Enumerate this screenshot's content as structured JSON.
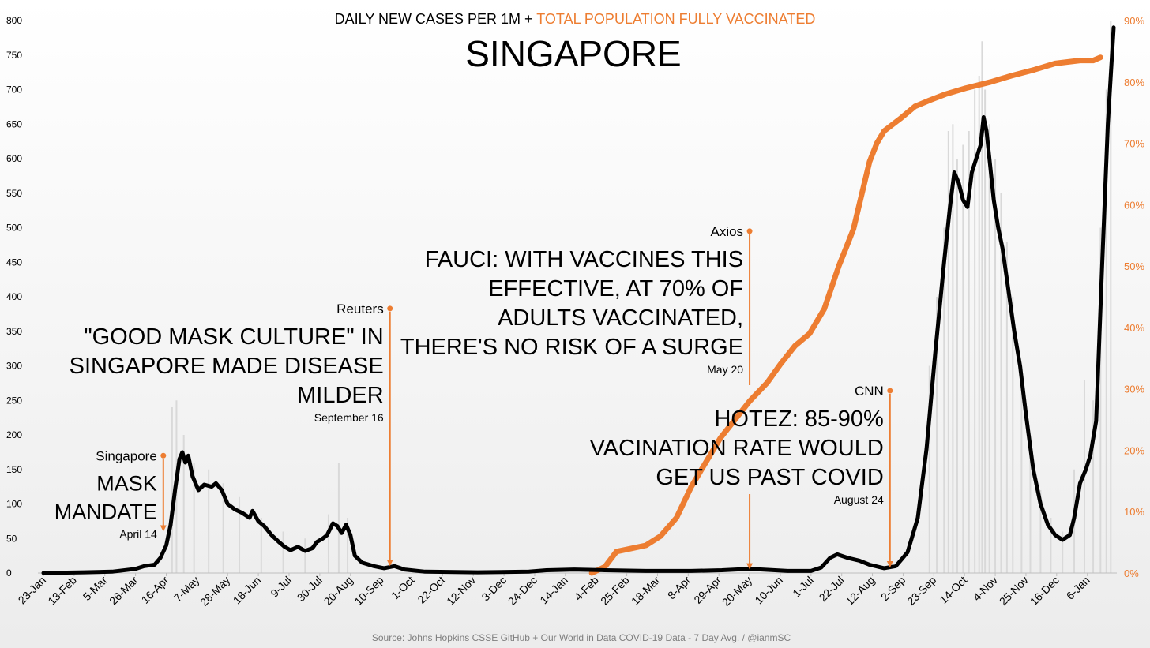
{
  "header": {
    "title_black": "DAILY NEW CASES PER 1M + ",
    "title_orange": "TOTAL POPULATION FULLY VACCINATED",
    "subtitle": "SINGAPORE"
  },
  "source": "Source: Johns Hopkins CSSE GitHub  + Our World in Data COVID-19 Data - 7 Day Avg. / @ianmSC",
  "colors": {
    "cases": "#000000",
    "vaccinated": "#ED7D31",
    "daily_bars": "#D9D9D9"
  },
  "annotations": [
    {
      "source": "Singapore",
      "lines": [
        "MASK",
        "MANDATE"
      ],
      "date": "April 14",
      "x_date": "2020-04-14",
      "line_top_y": 170,
      "arrow_y": 60,
      "text_top_y": 170,
      "date_below": true
    },
    {
      "source": "Reuters",
      "lines": [
        "\"GOOD MASK CULTURE\" IN",
        "SINGAPORE MADE DISEASE",
        "MILDER"
      ],
      "date": "September 16",
      "x_date": "2020-09-16",
      "line_top_y": 383,
      "arrow_y": 10,
      "text_top_y": 383,
      "date_below": true
    },
    {
      "source": "Axios",
      "lines": [
        "FAUCI: WITH VACCINES THIS",
        "EFFECTIVE, AT 70% OF",
        "ADULTS VACCINATED,",
        "THERE'S NO RISK OF A SURGE"
      ],
      "date": "May 20",
      "x_date": "2021-05-20",
      "line_top_y": 495,
      "arrow_y": 5,
      "text_top_y": 480,
      "date_below": true
    },
    {
      "source": "CNN",
      "lines": [
        "HOTEZ: 85-90%",
        "VACINATION RATE WOULD",
        "GET US PAST COVID"
      ],
      "date": "August 24",
      "x_date": "2021-08-24",
      "line_top_y": 264,
      "arrow_y": 8,
      "text_top_y": 264,
      "date_below": true
    }
  ],
  "chart_data": {
    "type": "line",
    "x_axis": {
      "type": "date",
      "range": [
        "2020-01-23",
        "2022-01-24"
      ],
      "tick_labels": [
        "23-Jan",
        "13-Feb",
        "5-Mar",
        "26-Mar",
        "16-Apr",
        "7-May",
        "28-May",
        "18-Jun",
        "9-Jul",
        "30-Jul",
        "20-Aug",
        "10-Sep",
        "1-Oct",
        "22-Oct",
        "12-Nov",
        "3-Dec",
        "24-Dec",
        "14-Jan",
        "4-Feb",
        "25-Feb",
        "18-Mar",
        "8-Apr",
        "29-Apr",
        "20-May",
        "10-Jun",
        "1-Jul",
        "22-Jul",
        "12-Aug",
        "2-Sep",
        "23-Sep",
        "14-Oct",
        "4-Nov",
        "25-Nov",
        "16-Dec",
        "6-Jan"
      ],
      "tick_start": "2020-01-23",
      "tick_interval_days": 21
    },
    "y_left": {
      "range": [
        0,
        800
      ],
      "ticks": [
        0,
        50,
        100,
        150,
        200,
        250,
        300,
        350,
        400,
        450,
        500,
        550,
        600,
        650,
        700,
        750,
        800
      ]
    },
    "y_right": {
      "range": [
        0,
        90
      ],
      "ticks": [
        "0%",
        "10%",
        "20%",
        "30%",
        "40%",
        "50%",
        "60%",
        "70%",
        "80%",
        "90%"
      ],
      "unit": "%"
    },
    "grid": false,
    "series": [
      {
        "axis": "left",
        "style": "line",
        "points": [
          [
            "2020-01-23",
            0
          ],
          [
            "2020-02-20",
            1
          ],
          [
            "2020-03-10",
            2
          ],
          [
            "2020-03-26",
            6
          ],
          [
            "2020-04-01",
            10
          ],
          [
            "2020-04-08",
            12
          ],
          [
            "2020-04-12",
            22
          ],
          [
            "2020-04-16",
            40
          ],
          [
            "2020-04-19",
            70
          ],
          [
            "2020-04-22",
            120
          ],
          [
            "2020-04-25",
            165
          ],
          [
            "2020-04-27",
            175
          ],
          [
            "2020-04-29",
            160
          ],
          [
            "2020-05-01",
            170
          ],
          [
            "2020-05-04",
            140
          ],
          [
            "2020-05-08",
            120
          ],
          [
            "2020-05-12",
            128
          ],
          [
            "2020-05-17",
            125
          ],
          [
            "2020-05-20",
            130
          ],
          [
            "2020-05-24",
            120
          ],
          [
            "2020-05-28",
            100
          ],
          [
            "2020-06-02",
            92
          ],
          [
            "2020-06-07",
            87
          ],
          [
            "2020-06-12",
            80
          ],
          [
            "2020-06-14",
            90
          ],
          [
            "2020-06-18",
            75
          ],
          [
            "2020-06-22",
            68
          ],
          [
            "2020-06-27",
            55
          ],
          [
            "2020-07-02",
            45
          ],
          [
            "2020-07-06",
            38
          ],
          [
            "2020-07-10",
            33
          ],
          [
            "2020-07-15",
            38
          ],
          [
            "2020-07-20",
            32
          ],
          [
            "2020-07-25",
            36
          ],
          [
            "2020-07-28",
            45
          ],
          [
            "2020-08-01",
            50
          ],
          [
            "2020-08-04",
            55
          ],
          [
            "2020-08-08",
            72
          ],
          [
            "2020-08-11",
            68
          ],
          [
            "2020-08-14",
            58
          ],
          [
            "2020-08-17",
            70
          ],
          [
            "2020-08-20",
            55
          ],
          [
            "2020-08-23",
            25
          ],
          [
            "2020-08-28",
            15
          ],
          [
            "2020-09-05",
            10
          ],
          [
            "2020-09-12",
            7
          ],
          [
            "2020-09-19",
            10
          ],
          [
            "2020-09-26",
            5
          ],
          [
            "2020-10-10",
            2
          ],
          [
            "2020-11-15",
            1
          ],
          [
            "2020-12-20",
            2
          ],
          [
            "2021-01-01",
            4
          ],
          [
            "2021-01-20",
            5
          ],
          [
            "2021-02-10",
            4
          ],
          [
            "2021-03-10",
            3
          ],
          [
            "2021-04-10",
            3
          ],
          [
            "2021-05-01",
            4
          ],
          [
            "2021-05-20",
            6
          ],
          [
            "2021-06-15",
            3
          ],
          [
            "2021-07-01",
            3
          ],
          [
            "2021-07-08",
            8
          ],
          [
            "2021-07-14",
            22
          ],
          [
            "2021-07-19",
            27
          ],
          [
            "2021-07-26",
            22
          ],
          [
            "2021-08-03",
            18
          ],
          [
            "2021-08-10",
            12
          ],
          [
            "2021-08-20",
            7
          ],
          [
            "2021-08-28",
            10
          ],
          [
            "2021-09-05",
            30
          ],
          [
            "2021-09-12",
            80
          ],
          [
            "2021-09-18",
            180
          ],
          [
            "2021-09-24",
            320
          ],
          [
            "2021-09-30",
            450
          ],
          [
            "2021-10-04",
            530
          ],
          [
            "2021-10-07",
            580
          ],
          [
            "2021-10-10",
            565
          ],
          [
            "2021-10-13",
            540
          ],
          [
            "2021-10-16",
            530
          ],
          [
            "2021-10-19",
            580
          ],
          [
            "2021-10-22",
            600
          ],
          [
            "2021-10-25",
            620
          ],
          [
            "2021-10-27",
            660
          ],
          [
            "2021-10-29",
            640
          ],
          [
            "2021-10-31",
            600
          ],
          [
            "2021-11-03",
            540
          ],
          [
            "2021-11-06",
            500
          ],
          [
            "2021-11-09",
            470
          ],
          [
            "2021-11-13",
            410
          ],
          [
            "2021-11-17",
            350
          ],
          [
            "2021-11-21",
            300
          ],
          [
            "2021-11-25",
            230
          ],
          [
            "2021-11-30",
            150
          ],
          [
            "2021-12-05",
            100
          ],
          [
            "2021-12-10",
            70
          ],
          [
            "2021-12-15",
            55
          ],
          [
            "2021-12-20",
            48
          ],
          [
            "2021-12-25",
            55
          ],
          [
            "2021-12-28",
            80
          ],
          [
            "2022-01-01",
            130
          ],
          [
            "2022-01-05",
            150
          ],
          [
            "2022-01-08",
            170
          ],
          [
            "2022-01-12",
            220
          ],
          [
            "2022-01-16",
            440
          ],
          [
            "2022-01-20",
            650
          ],
          [
            "2022-01-24",
            790
          ]
        ]
      },
      {
        "axis": "right",
        "style": "line",
        "points": [
          [
            "2021-02-01",
            0
          ],
          [
            "2021-02-10",
            1
          ],
          [
            "2021-02-18",
            3.5
          ],
          [
            "2021-02-28",
            4
          ],
          [
            "2021-03-10",
            4.5
          ],
          [
            "2021-03-20",
            6
          ],
          [
            "2021-03-31",
            9
          ],
          [
            "2021-04-10",
            14
          ],
          [
            "2021-04-20",
            18
          ],
          [
            "2021-04-30",
            22
          ],
          [
            "2021-05-10",
            25
          ],
          [
            "2021-05-20",
            28
          ],
          [
            "2021-06-01",
            31
          ],
          [
            "2021-06-10",
            34
          ],
          [
            "2021-06-20",
            37
          ],
          [
            "2021-06-30",
            39
          ],
          [
            "2021-07-10",
            43
          ],
          [
            "2021-07-20",
            50
          ],
          [
            "2021-07-25",
            53
          ],
          [
            "2021-07-30",
            56
          ],
          [
            "2021-08-05",
            62
          ],
          [
            "2021-08-10",
            67
          ],
          [
            "2021-08-15",
            70
          ],
          [
            "2021-08-20",
            72
          ],
          [
            "2021-08-31",
            74
          ],
          [
            "2021-09-10",
            76
          ],
          [
            "2021-09-20",
            77
          ],
          [
            "2021-10-01",
            78
          ],
          [
            "2021-10-15",
            79
          ],
          [
            "2021-11-01",
            80
          ],
          [
            "2021-11-15",
            81
          ],
          [
            "2021-12-01",
            82
          ],
          [
            "2021-12-15",
            83
          ],
          [
            "2022-01-01",
            83.5
          ],
          [
            "2022-01-10",
            83.5
          ],
          [
            "2022-01-15",
            84
          ]
        ]
      },
      {
        "axis": "left",
        "style": "bars",
        "points": [
          [
            "2020-04-20",
            240
          ],
          [
            "2020-04-23",
            250
          ],
          [
            "2020-04-28",
            200
          ],
          [
            "2020-05-05",
            160
          ],
          [
            "2020-05-15",
            150
          ],
          [
            "2020-05-25",
            130
          ],
          [
            "2020-06-05",
            110
          ],
          [
            "2020-06-20",
            80
          ],
          [
            "2020-07-05",
            60
          ],
          [
            "2020-07-20",
            50
          ],
          [
            "2020-08-05",
            85
          ],
          [
            "2020-08-12",
            160
          ],
          [
            "2020-08-18",
            80
          ],
          [
            "2021-09-20",
            300
          ],
          [
            "2021-09-25",
            400
          ],
          [
            "2021-09-30",
            500
          ],
          [
            "2021-10-03",
            640
          ],
          [
            "2021-10-06",
            650
          ],
          [
            "2021-10-09",
            600
          ],
          [
            "2021-10-13",
            620
          ],
          [
            "2021-10-17",
            640
          ],
          [
            "2021-10-21",
            700
          ],
          [
            "2021-10-24",
            720
          ],
          [
            "2021-10-26",
            770
          ],
          [
            "2021-10-28",
            700
          ],
          [
            "2021-10-31",
            650
          ],
          [
            "2021-11-04",
            600
          ],
          [
            "2021-11-08",
            550
          ],
          [
            "2021-11-12",
            480
          ],
          [
            "2021-11-16",
            400
          ],
          [
            "2021-11-22",
            300
          ],
          [
            "2021-11-28",
            200
          ],
          [
            "2021-12-05",
            120
          ],
          [
            "2021-12-12",
            80
          ],
          [
            "2021-12-20",
            60
          ],
          [
            "2021-12-28",
            150
          ],
          [
            "2022-01-04",
            280
          ],
          [
            "2022-01-10",
            250
          ],
          [
            "2022-01-15",
            500
          ],
          [
            "2022-01-19",
            700
          ],
          [
            "2022-01-22",
            800
          ]
        ]
      }
    ]
  }
}
